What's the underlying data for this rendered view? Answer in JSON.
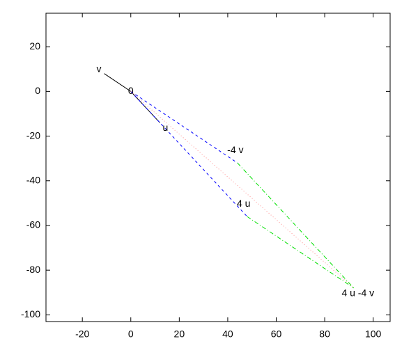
{
  "chart_data": {
    "type": "vector",
    "xlim": [
      -35,
      107
    ],
    "ylim": [
      -103,
      35
    ],
    "xticks": [
      -20,
      0,
      20,
      40,
      60,
      80,
      100
    ],
    "yticks": [
      20,
      0,
      -20,
      -40,
      -60,
      -80,
      -100
    ],
    "segments": [
      {
        "color": "#000000",
        "style": "solid",
        "x": [
          0,
          12
        ],
        "y": [
          0,
          -14
        ]
      },
      {
        "color": "#000000",
        "style": "solid",
        "x": [
          0,
          -11
        ],
        "y": [
          0,
          8
        ]
      },
      {
        "color": "#0000ff",
        "style": "dashed",
        "x": [
          0,
          44
        ],
        "y": [
          0,
          -32
        ]
      },
      {
        "color": "#0000ff",
        "style": "dashed",
        "x": [
          0,
          48
        ],
        "y": [
          0,
          -56
        ]
      },
      {
        "color": "#00e000",
        "style": "dashdot",
        "x": [
          44,
          92
        ],
        "y": [
          -32,
          -88
        ]
      },
      {
        "color": "#00e000",
        "style": "dashdot",
        "x": [
          48,
          92
        ],
        "y": [
          -56,
          -88
        ]
      },
      {
        "color": "#ff9090",
        "style": "dotted",
        "x": [
          0,
          92
        ],
        "y": [
          0,
          -88
        ]
      }
    ],
    "labels": [
      {
        "text": "v",
        "x": -11,
        "y": 8
      },
      {
        "text": "0",
        "x": 0,
        "y": 0
      },
      {
        "text": "u",
        "x": 12,
        "y": -14
      },
      {
        "text": "-4 v",
        "x": 44,
        "y": -32
      },
      {
        "text": "4 u",
        "x": 48,
        "y": -56
      },
      {
        "text": "4 u -4 v",
        "x": 92,
        "y": -88
      }
    ]
  }
}
